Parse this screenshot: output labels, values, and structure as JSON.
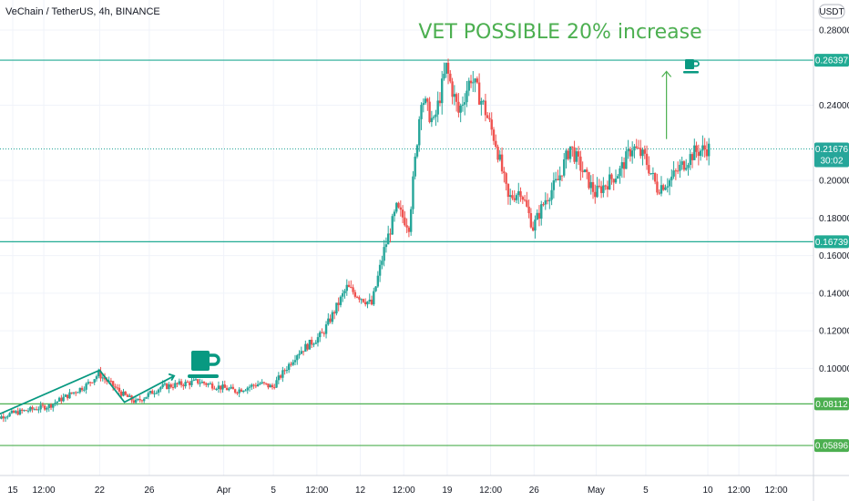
{
  "chart_data": {
    "type": "candlestick",
    "title": "VeChain / TetherUS, 4h, BINANCE",
    "annotation": "VET POSSIBLE 20% increase",
    "currency": "USDT",
    "ylim": [
      0.043,
      0.296
    ],
    "y_ticks": [
      {
        "value": 0.1,
        "label": "0.10000"
      },
      {
        "value": 0.12,
        "label": "0.12000"
      },
      {
        "value": 0.14,
        "label": "0.14000"
      },
      {
        "value": 0.16,
        "label": "0.16000"
      },
      {
        "value": 0.18,
        "label": "0.18000"
      },
      {
        "value": 0.2,
        "label": "0.20000"
      },
      {
        "value": 0.24,
        "label": "0.24000"
      },
      {
        "value": 0.28,
        "label": "0.28000"
      }
    ],
    "x_ticks": [
      {
        "date": "2021-03-15",
        "label": "15"
      },
      {
        "date": "2021-03-17 12:00",
        "label": "12:00"
      },
      {
        "date": "2021-03-22",
        "label": "22"
      },
      {
        "date": "2021-03-26",
        "label": "26"
      },
      {
        "date": "2021-04-01",
        "label": "Apr"
      },
      {
        "date": "2021-04-05",
        "label": "5"
      },
      {
        "date": "2021-04-08 12:00",
        "label": "12:00"
      },
      {
        "date": "2021-04-12",
        "label": "12"
      },
      {
        "date": "2021-04-15 12:00",
        "label": "12:00"
      },
      {
        "date": "2021-04-19",
        "label": "19"
      },
      {
        "date": "2021-04-22 12:00",
        "label": "12:00"
      },
      {
        "date": "2021-04-26",
        "label": "26"
      },
      {
        "date": "2021-05-01",
        "label": "May"
      },
      {
        "date": "2021-05-05",
        "label": "5"
      },
      {
        "date": "2021-05-10",
        "label": "10"
      },
      {
        "date": "2021-05-12 12:00",
        "label": "12:00"
      },
      {
        "date": "2021-05-15 12:00",
        "label": "12:00"
      }
    ],
    "price_levels": [
      {
        "value": 0.26397,
        "label": "0.26397",
        "color": "#22ab94"
      },
      {
        "value": 0.16739,
        "label": "0.16739",
        "color": "#22ab94"
      },
      {
        "value": 0.08112,
        "label": "0.08112",
        "color": "#4caf50"
      },
      {
        "value": 0.05896,
        "label": "0.05896",
        "color": "#4caf50"
      }
    ],
    "current_price": {
      "value": 0.21676,
      "label": "0.21676",
      "countdown": "30:02",
      "color": "#26a69a"
    },
    "trend_lines": [
      {
        "points": [
          [
            "2021-03-13",
            0.073
          ],
          [
            "2021-03-22",
            0.099
          ],
          [
            "2021-03-24",
            0.082
          ],
          [
            "2021-03-28",
            0.096
          ]
        ]
      }
    ],
    "projection_arrow": {
      "from": [
        "2021-05-06 16:00",
        0.222
      ],
      "to": [
        "2021-05-06 16:00",
        0.258
      ]
    },
    "candles_anchor": [
      [
        "2021-03-13",
        0.072
      ],
      [
        "2021-03-15",
        0.076
      ],
      [
        "2021-03-18",
        0.08
      ],
      [
        "2021-03-21",
        0.091
      ],
      [
        "2021-03-22",
        0.097
      ],
      [
        "2021-03-24",
        0.086
      ],
      [
        "2021-03-25",
        0.082
      ],
      [
        "2021-03-27",
        0.09
      ],
      [
        "2021-03-30",
        0.093
      ],
      [
        "2021-04-02",
        0.088
      ],
      [
        "2021-04-04",
        0.092
      ],
      [
        "2021-04-05",
        0.09
      ],
      [
        "2021-04-07",
        0.108
      ],
      [
        "2021-04-09",
        0.118
      ],
      [
        "2021-04-11",
        0.143
      ],
      [
        "2021-04-13",
        0.134
      ],
      [
        "2021-04-14",
        0.163
      ],
      [
        "2021-04-15",
        0.185
      ],
      [
        "2021-04-16",
        0.176
      ],
      [
        "2021-04-17",
        0.245
      ],
      [
        "2021-04-18",
        0.23
      ],
      [
        "2021-04-19",
        0.26
      ],
      [
        "2021-04-20",
        0.236
      ],
      [
        "2021-04-21",
        0.255
      ],
      [
        "2021-04-22",
        0.24
      ],
      [
        "2021-04-23",
        0.22
      ],
      [
        "2021-04-24",
        0.19
      ],
      [
        "2021-04-25",
        0.195
      ],
      [
        "2021-04-26",
        0.175
      ],
      [
        "2021-04-27",
        0.19
      ],
      [
        "2021-04-28",
        0.2
      ],
      [
        "2021-04-29",
        0.218
      ],
      [
        "2021-04-30",
        0.205
      ],
      [
        "2021-05-01",
        0.193
      ],
      [
        "2021-05-03",
        0.205
      ],
      [
        "2021-05-04",
        0.218
      ],
      [
        "2021-05-05",
        0.212
      ],
      [
        "2021-05-06",
        0.196
      ],
      [
        "2021-05-07",
        0.2
      ],
      [
        "2021-05-08",
        0.208
      ],
      [
        "2021-05-09",
        0.215
      ],
      [
        "2021-05-10",
        0.217
      ]
    ],
    "colors": {
      "up": "#26a69a",
      "down": "#ef5350",
      "annotation": "#4caf50",
      "level_teal": "#22ab94",
      "level_green": "#4caf50"
    },
    "grid": true
  }
}
